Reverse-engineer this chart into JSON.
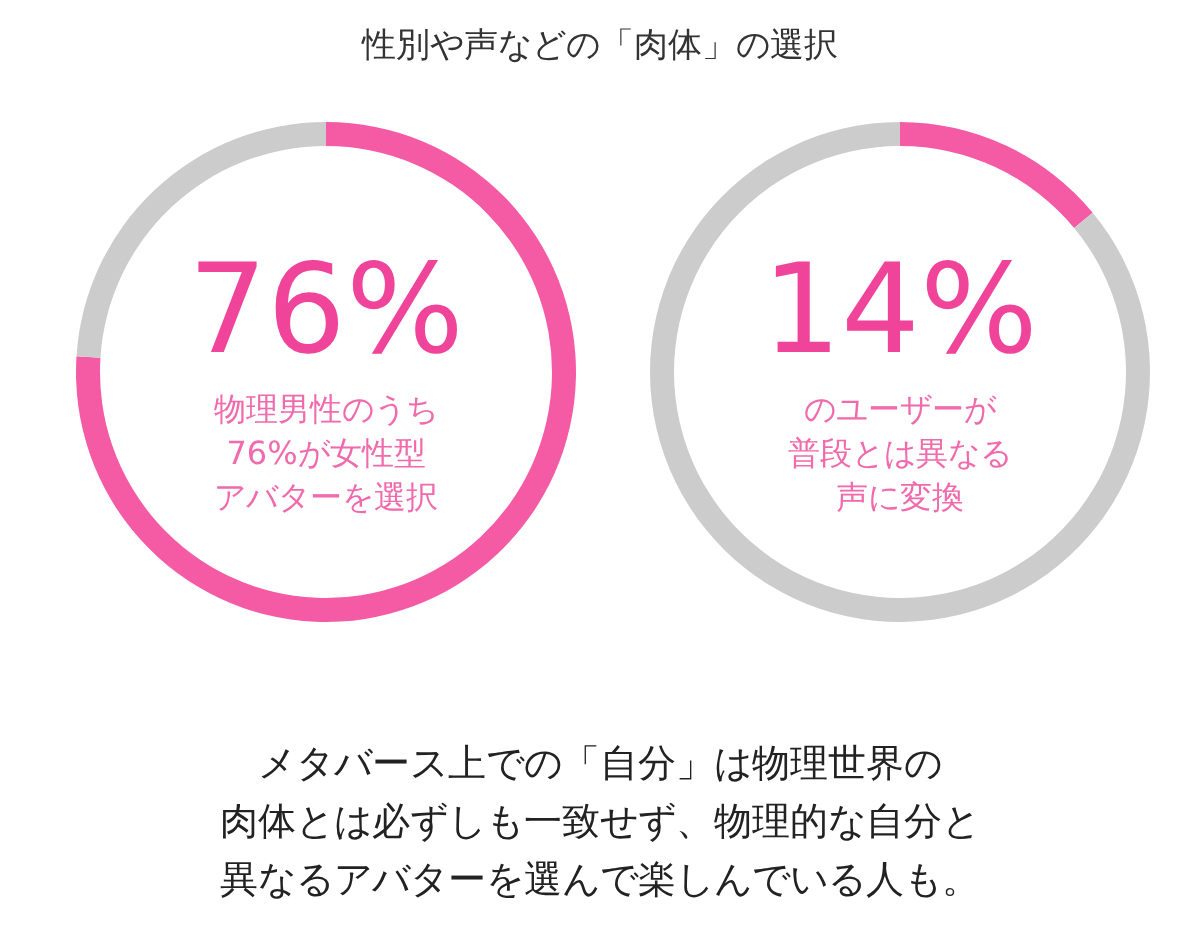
{
  "chart_data": [
    {
      "type": "donut",
      "title": "性別や声などの「肉体」の選択",
      "categories": [
        null,
        null
      ],
      "values": [
        76,
        24
      ],
      "colors": [
        "#f55aa5",
        "#cccccc"
      ],
      "annotations": [
        "76%",
        "物理男性のうち",
        "76%が女性型",
        "アバターを選択"
      ]
    },
    {
      "type": "donut",
      "categories": [
        null,
        null
      ],
      "values": [
        14,
        86
      ],
      "colors": [
        "#f55aa5",
        "#cccccc"
      ],
      "annotations": [
        "14%",
        "のユーザーが",
        "普段とは異なる",
        "声に変換",
        "メタバース上での「自分」は物理世界の",
        "肉体とは必ずしも一致せず、物理的な自分と",
        "異なるアバターを選んで楽しんでいる人も。"
      ]
    }
  ]
}
